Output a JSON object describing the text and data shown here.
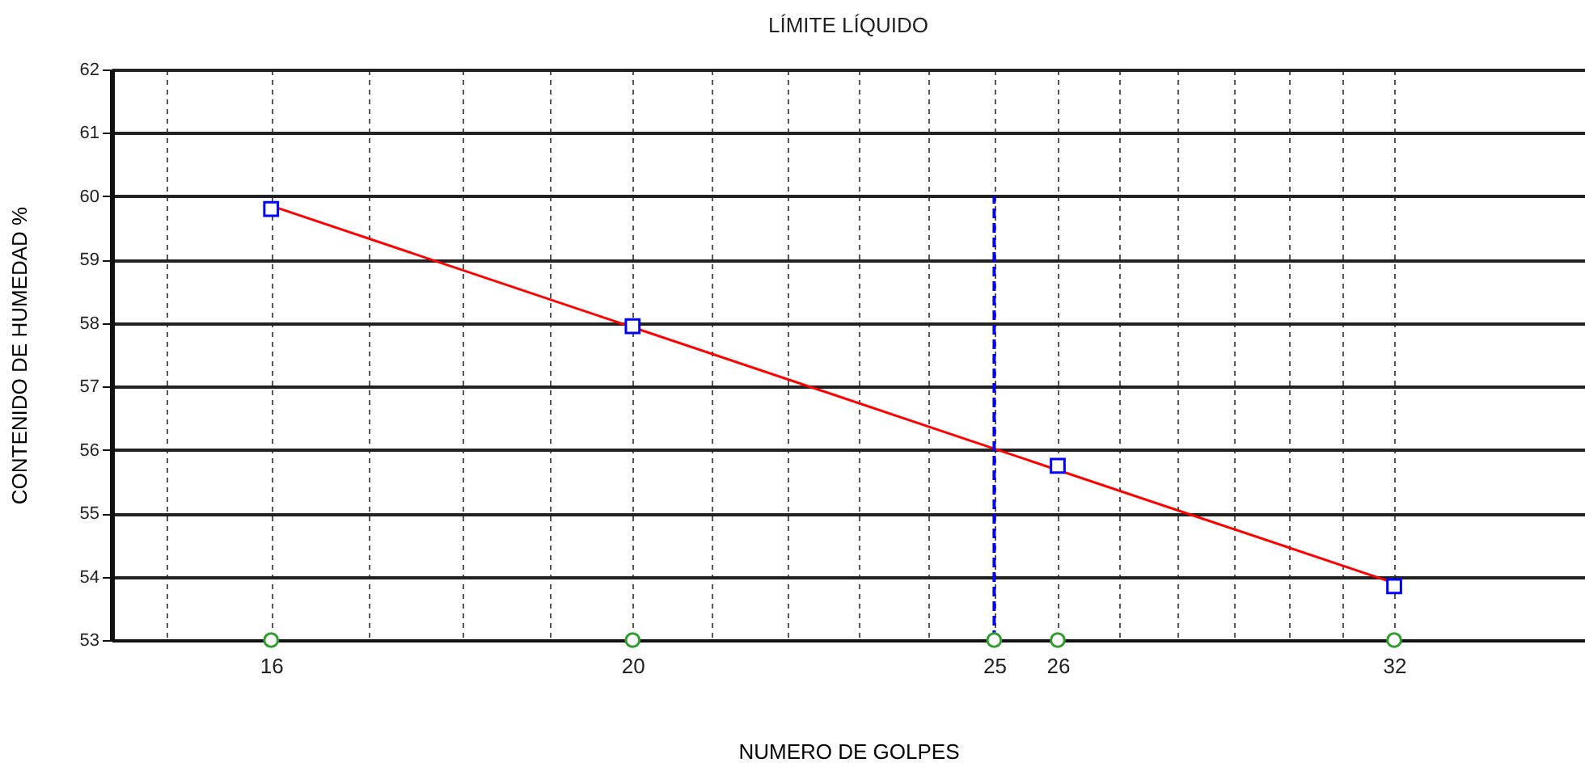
{
  "chart_data": {
    "type": "scatter",
    "title": "LÍMITE LÍQUIDO",
    "xlabel": "NUMERO DE GOLPES",
    "ylabel": "CONTENIDO DE HUMEDAD %",
    "log": "x",
    "grid": true,
    "xlim": [
      14.5,
      36
    ],
    "ylim": [
      53,
      62
    ],
    "xticks": [
      {
        "value": 15,
        "label": null
      },
      16,
      {
        "value": 17,
        "label": null
      },
      {
        "value": 18,
        "label": null
      },
      {
        "value": 19,
        "label": null
      },
      20,
      {
        "value": 21,
        "label": null
      },
      {
        "value": 22,
        "label": null
      },
      {
        "value": 23,
        "label": null
      },
      {
        "value": 24,
        "label": null
      },
      25,
      26,
      {
        "value": 27,
        "label": null
      },
      {
        "value": 28,
        "label": null
      },
      {
        "value": 29,
        "label": null
      },
      {
        "value": 30,
        "label": null
      },
      {
        "value": 31,
        "label": null
      },
      32
    ],
    "yticks": [
      53,
      54,
      55,
      56,
      57,
      58,
      59,
      60,
      61,
      62
    ],
    "series": [
      {
        "type": "line",
        "color": "#ff0000",
        "x": [
          16,
          32
        ],
        "values": [
          59.85,
          53.9
        ],
        "marker": "none",
        "line_style": "solid"
      },
      {
        "type": "line",
        "color": "#0000ff",
        "x": [
          25,
          25
        ],
        "values": [
          53,
          60
        ],
        "marker": "none",
        "line_style": "dashed"
      },
      {
        "color": "#0000ff",
        "x": [
          16,
          20,
          26,
          32
        ],
        "values": [
          59.8,
          57.95,
          55.75,
          53.85
        ],
        "marker": "square"
      },
      {
        "color": "#2e9e2e",
        "x": [
          16,
          20,
          25,
          26,
          32
        ],
        "values": [
          53,
          53,
          53,
          53,
          53
        ],
        "marker": "circle"
      }
    ]
  }
}
